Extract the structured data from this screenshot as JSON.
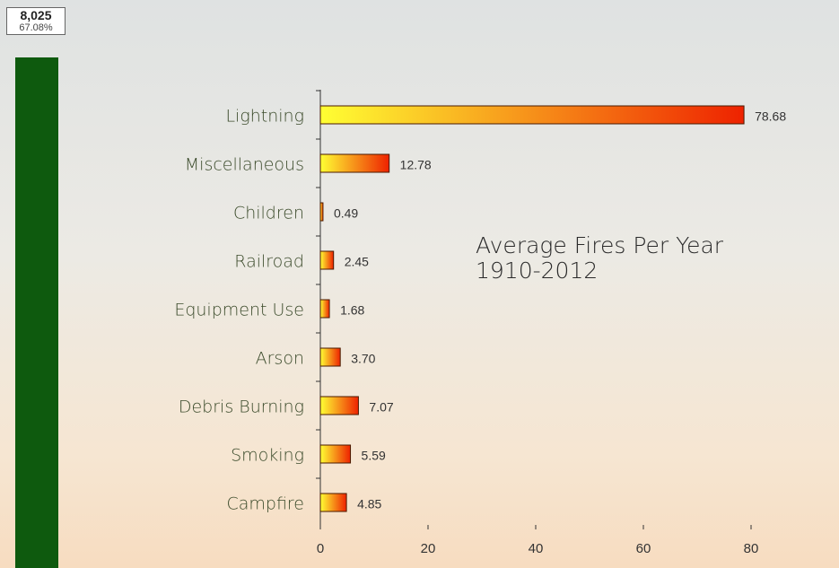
{
  "side_indicator": {
    "count": "8,025",
    "share": "67.08%"
  },
  "chart_data": {
    "type": "bar",
    "orientation": "horizontal",
    "title": "Average Fires Per Year",
    "subtitle": "1910-2012",
    "categories": [
      "Lightning",
      "Miscellaneous",
      "Children",
      "Railroad",
      "Equipment Use",
      "Arson",
      "Debris Burning",
      "Smoking",
      "Campfire"
    ],
    "values": [
      78.68,
      12.78,
      0.49,
      2.45,
      1.68,
      3.7,
      7.07,
      5.59,
      4.85
    ],
    "value_labels": [
      "78.68",
      "12.78",
      "0.49",
      "2.45",
      "1.68",
      "3.70",
      "7.07",
      "5.59",
      "4.85"
    ],
    "colors": [
      "#ffff33",
      "#ee2200"
    ],
    "xlim": [
      0,
      96
    ],
    "xticks": [
      0,
      20,
      40,
      60,
      80
    ]
  }
}
